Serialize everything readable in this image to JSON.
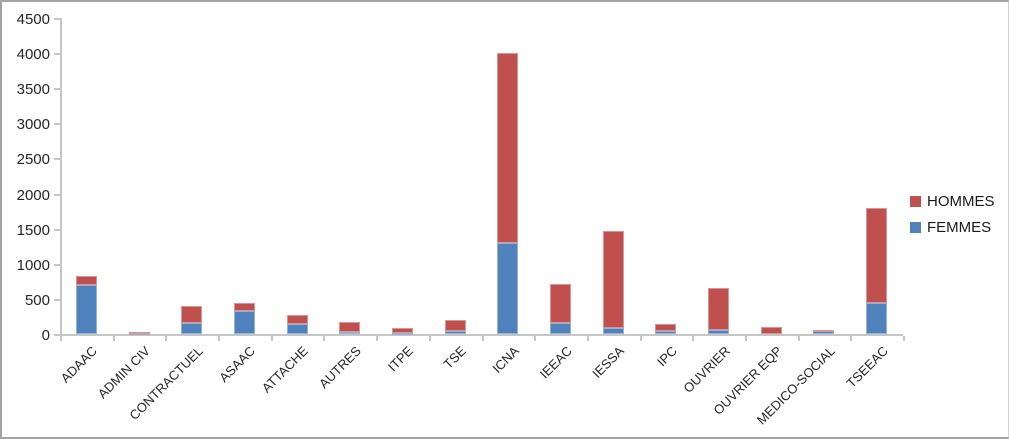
{
  "chart_data": {
    "type": "bar",
    "stacked": true,
    "title": "",
    "xlabel": "",
    "ylabel": "",
    "ylim": [
      0,
      4500
    ],
    "ytick_step": 500,
    "yticks": [
      0,
      500,
      1000,
      1500,
      2000,
      2500,
      3000,
      3500,
      4000,
      4500
    ],
    "grid": false,
    "legend_position": "right",
    "categories": [
      "ADAAC",
      "ADMIN CIV",
      "CONTRACTUEL",
      "ASAAC",
      "ATTACHE",
      "AUTRES",
      "ITPE",
      "TSE",
      "ICNA",
      "IEEAC",
      "IESSA",
      "IPC",
      "OUVRIER",
      "OUVRIER EQP",
      "MEDICO-SOCIAL",
      "TSEEAC"
    ],
    "series": [
      {
        "name": "FEMMES",
        "color": "#4f81bd",
        "border_color": "#95b3d7",
        "values": [
          700,
          10,
          155,
          325,
          140,
          25,
          20,
          40,
          1295,
          155,
          90,
          40,
          55,
          0,
          45,
          440
        ]
      },
      {
        "name": "HOMMES",
        "color": "#c0504d",
        "border_color": "#d99694",
        "values": [
          135,
          20,
          235,
          120,
          130,
          145,
          70,
          150,
          2710,
          550,
          1380,
          95,
          605,
          95,
          10,
          1350
        ]
      }
    ],
    "legend": [
      {
        "label": "HOMMES",
        "color": "#c0504d"
      },
      {
        "label": "FEMMES",
        "color": "#4f81bd"
      }
    ],
    "axis_color": "#c6c6c6",
    "text_color": "#262626"
  }
}
